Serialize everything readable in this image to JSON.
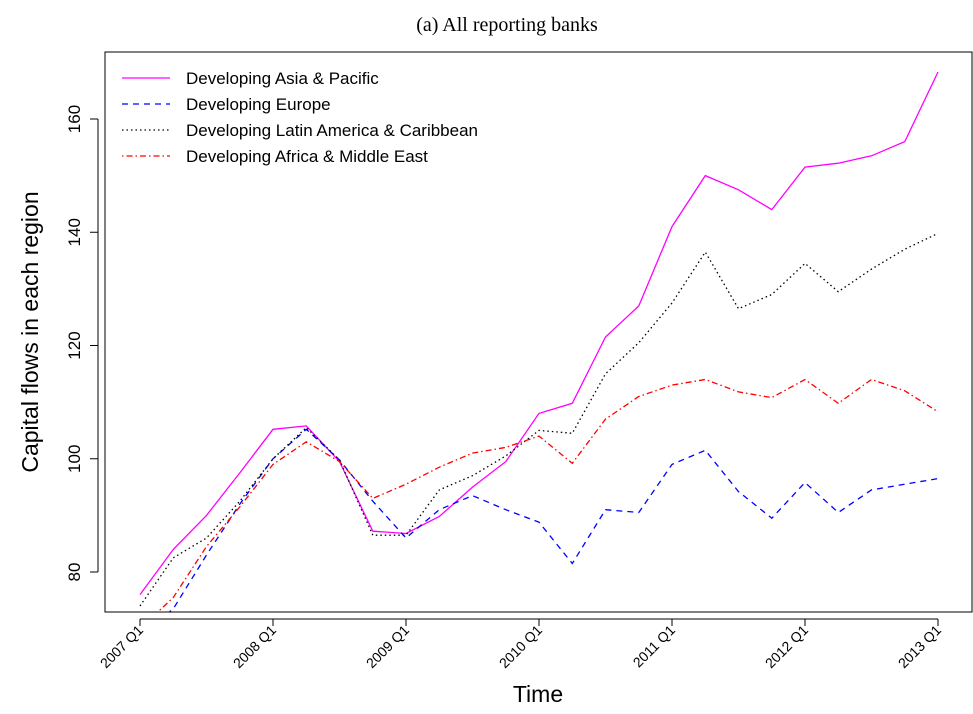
{
  "chart_data": {
    "type": "line",
    "title": "(a) All reporting banks",
    "xlabel": "Time",
    "ylabel": "Capital flows in each region",
    "x": [
      "2007 Q1",
      "2007 Q2",
      "2007 Q3",
      "2007 Q4",
      "2008 Q1",
      "2008 Q2",
      "2008 Q3",
      "2008 Q4",
      "2009 Q1",
      "2009 Q2",
      "2009 Q3",
      "2009 Q4",
      "2010 Q1",
      "2010 Q2",
      "2010 Q3",
      "2010 Q4",
      "2011 Q1",
      "2011 Q2",
      "2011 Q3",
      "2011 Q4",
      "2012 Q1",
      "2012 Q2",
      "2012 Q3",
      "2012 Q4",
      "2013 Q1"
    ],
    "x_tick_labels": [
      "2007 Q1",
      "2008 Q1",
      "2009 Q1",
      "2010 Q1",
      "2011 Q1",
      "2012 Q1",
      "2013 Q1"
    ],
    "y_ticks": [
      80,
      100,
      120,
      140,
      160
    ],
    "ylim": [
      72,
      172
    ],
    "legend_position": "top-left",
    "grid": false,
    "series": [
      {
        "name": "Developing Asia & Pacific",
        "color": "#ff00ff",
        "dash": "solid",
        "values": [
          76,
          84,
          90,
          97.5,
          105.2,
          105.8,
          99.5,
          87.2,
          86.8,
          89.8,
          95,
          99.5,
          108,
          109.8,
          121.5,
          127,
          141,
          150,
          147.5,
          144,
          151.5,
          152.2,
          153.5,
          156,
          168.3
        ]
      },
      {
        "name": "Developing Europe",
        "color": "#0000ff",
        "dash": "dashed",
        "values": [
          69,
          73.5,
          83,
          92,
          100,
          105.2,
          99.8,
          92.5,
          86,
          91,
          93.5,
          91,
          88.8,
          81.5,
          91,
          90.5,
          99,
          101.5,
          94.2,
          89.5,
          95.8,
          90.5,
          94.5,
          95.5,
          96.5
        ]
      },
      {
        "name": "Developing Latin America & Caribbean",
        "color": "#000000",
        "dash": "dotted",
        "values": [
          74,
          82.5,
          86,
          92.5,
          100,
          105.5,
          99.8,
          86.5,
          86.5,
          94.5,
          97,
          100.5,
          105,
          104.5,
          115,
          120.5,
          127.5,
          136.5,
          126.5,
          129,
          134.5,
          129.5,
          133.5,
          137,
          139.8
        ]
      },
      {
        "name": "Developing Africa & Middle East",
        "color": "#ff0000",
        "dash": "dotdash",
        "values": [
          70,
          75.5,
          84.5,
          91.5,
          99,
          103,
          99.5,
          93,
          95.5,
          98.5,
          101,
          102,
          104,
          99.2,
          107,
          111,
          113,
          114,
          111.8,
          110.8,
          114,
          109.8,
          114,
          112,
          108.3
        ]
      }
    ]
  }
}
